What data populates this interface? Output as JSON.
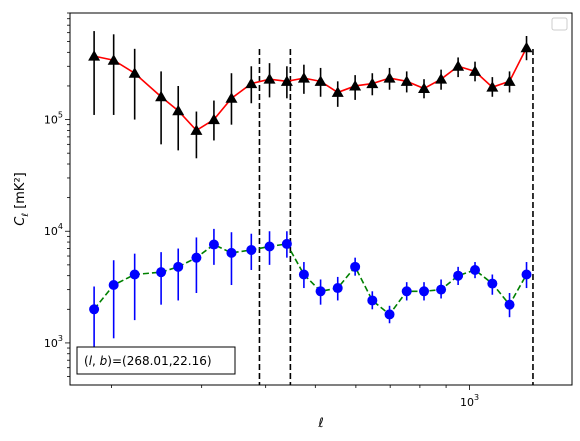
{
  "chart_data": {
    "type": "scatter",
    "xlabel": "ℓ",
    "ylabel": "C_ℓ  [mK²]",
    "xscale": "log",
    "yscale": "log",
    "xlim": [
      166,
      1585
    ],
    "ylim": [
      420,
      900000
    ],
    "x_ticks": [
      {
        "value": 1000,
        "label": "10",
        "exp": "3"
      }
    ],
    "y_ticks": [
      {
        "value": 1000,
        "label": "10",
        "exp": "3"
      },
      {
        "value": 10000,
        "label": "10",
        "exp": "4"
      },
      {
        "value": 100000,
        "label": "10",
        "exp": "5"
      }
    ],
    "vlines": [
      389,
      447,
      1330
    ],
    "legend": {
      "location": "upper right",
      "entries": []
    },
    "annotation": "(l, b)=(268.01,22.16)",
    "annotation_parts": [
      "(",
      "l",
      ", ",
      "b",
      ")=(268.01,22.16)"
    ],
    "series": [
      {
        "marker": "triangle",
        "color": "#000000",
        "line_color": "#ff0000",
        "line_style": "solid",
        "points": [
          {
            "x": 185,
            "y": 370000,
            "lo": 110000,
            "hi": 620000
          },
          {
            "x": 202,
            "y": 340000,
            "lo": 110000,
            "hi": 580000
          },
          {
            "x": 222,
            "y": 260000,
            "lo": 100000,
            "hi": 430000
          },
          {
            "x": 250,
            "y": 160000,
            "lo": 60000,
            "hi": 270000
          },
          {
            "x": 270,
            "y": 120000,
            "lo": 53000,
            "hi": 200000
          },
          {
            "x": 293,
            "y": 80000,
            "lo": 45000,
            "hi": 118000
          },
          {
            "x": 317,
            "y": 100000,
            "lo": 65000,
            "hi": 148000
          },
          {
            "x": 343,
            "y": 155000,
            "lo": 90000,
            "hi": 260000
          },
          {
            "x": 375,
            "y": 210000,
            "lo": 140000,
            "hi": 300000
          },
          {
            "x": 407,
            "y": 230000,
            "lo": 158000,
            "hi": 320000
          },
          {
            "x": 440,
            "y": 220000,
            "lo": 155000,
            "hi": 300000
          },
          {
            "x": 475,
            "y": 235000,
            "lo": 170000,
            "hi": 310000
          },
          {
            "x": 512,
            "y": 220000,
            "lo": 160000,
            "hi": 290000
          },
          {
            "x": 553,
            "y": 175000,
            "lo": 130000,
            "hi": 220000
          },
          {
            "x": 598,
            "y": 200000,
            "lo": 150000,
            "hi": 250000
          },
          {
            "x": 646,
            "y": 210000,
            "lo": 165000,
            "hi": 260000
          },
          {
            "x": 698,
            "y": 235000,
            "lo": 185000,
            "hi": 290000
          },
          {
            "x": 754,
            "y": 220000,
            "lo": 175000,
            "hi": 270000
          },
          {
            "x": 815,
            "y": 190000,
            "lo": 155000,
            "hi": 230000
          },
          {
            "x": 880,
            "y": 230000,
            "lo": 185000,
            "hi": 280000
          },
          {
            "x": 950,
            "y": 300000,
            "lo": 240000,
            "hi": 360000
          },
          {
            "x": 1025,
            "y": 270000,
            "lo": 220000,
            "hi": 330000
          },
          {
            "x": 1108,
            "y": 195000,
            "lo": 160000,
            "hi": 240000
          },
          {
            "x": 1197,
            "y": 220000,
            "lo": 175000,
            "hi": 270000
          },
          {
            "x": 1292,
            "y": 440000,
            "lo": 340000,
            "hi": 560000
          }
        ]
      },
      {
        "marker": "circle",
        "color": "#0000ff",
        "line_color": "#008000",
        "line_style": "dashed",
        "points": [
          {
            "x": 185,
            "y": 2000,
            "lo": 700,
            "hi": 3200
          },
          {
            "x": 202,
            "y": 3300,
            "lo": 1100,
            "hi": 5500
          },
          {
            "x": 222,
            "y": 4100,
            "lo": 1600,
            "hi": 6300
          },
          {
            "x": 250,
            "y": 4300,
            "lo": 2200,
            "hi": 6500
          },
          {
            "x": 270,
            "y": 4800,
            "lo": 2400,
            "hi": 7000
          },
          {
            "x": 293,
            "y": 5800,
            "lo": 2800,
            "hi": 8800
          },
          {
            "x": 317,
            "y": 7600,
            "lo": 5000,
            "hi": 10500
          },
          {
            "x": 343,
            "y": 6400,
            "lo": 3300,
            "hi": 9800
          },
          {
            "x": 375,
            "y": 6800,
            "lo": 4500,
            "hi": 9500
          },
          {
            "x": 407,
            "y": 7300,
            "lo": 5000,
            "hi": 10000
          },
          {
            "x": 440,
            "y": 7700,
            "lo": 5800,
            "hi": 10000
          },
          {
            "x": 475,
            "y": 4100,
            "lo": 3100,
            "hi": 5300
          },
          {
            "x": 512,
            "y": 2900,
            "lo": 2200,
            "hi": 3700
          },
          {
            "x": 553,
            "y": 3100,
            "lo": 2400,
            "hi": 3900
          },
          {
            "x": 598,
            "y": 4800,
            "lo": 4000,
            "hi": 5800
          },
          {
            "x": 646,
            "y": 2400,
            "lo": 2000,
            "hi": 2900
          },
          {
            "x": 698,
            "y": 1800,
            "lo": 1500,
            "hi": 2150
          },
          {
            "x": 754,
            "y": 2900,
            "lo": 2400,
            "hi": 3500
          },
          {
            "x": 815,
            "y": 2900,
            "lo": 2400,
            "hi": 3500
          },
          {
            "x": 880,
            "y": 3000,
            "lo": 2500,
            "hi": 3700
          },
          {
            "x": 950,
            "y": 4000,
            "lo": 3300,
            "hi": 4800
          },
          {
            "x": 1025,
            "y": 4500,
            "lo": 3800,
            "hi": 5300
          },
          {
            "x": 1108,
            "y": 3400,
            "lo": 2700,
            "hi": 4100
          },
          {
            "x": 1197,
            "y": 2200,
            "lo": 1700,
            "hi": 2800
          },
          {
            "x": 1292,
            "y": 4100,
            "lo": 3100,
            "hi": 5300
          }
        ]
      }
    ]
  }
}
